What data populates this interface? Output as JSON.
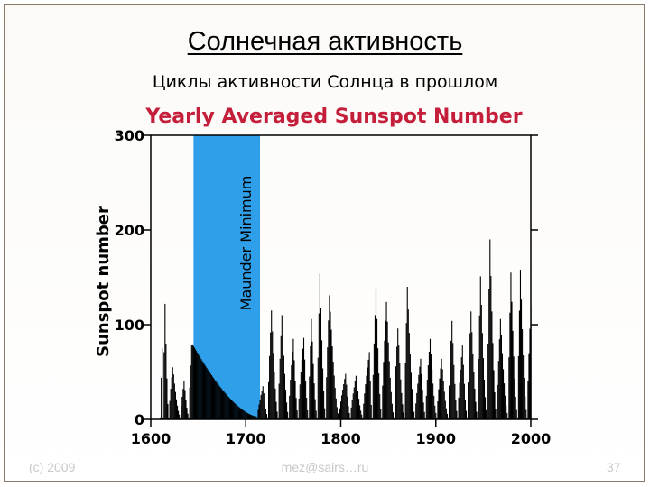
{
  "slide": {
    "title": "Солнечная активность",
    "subtitle": "Циклы активности Солнца в прошлом",
    "footer_left": "(c) 2009",
    "footer_center": "mez@sairs…ru",
    "footer_right": "37"
  },
  "chart_data": {
    "type": "bar",
    "title": "Yearly Averaged Sunspot Number",
    "xlabel": "",
    "ylabel": "Sunspot number",
    "xlim": [
      1600,
      2000
    ],
    "ylim": [
      0,
      300
    ],
    "x_ticks": [
      1600,
      1700,
      1800,
      1900,
      2000
    ],
    "y_ticks": [
      0,
      100,
      200,
      300
    ],
    "grid": false,
    "colors": {
      "bars": "#000000",
      "band": "#2e9fe8",
      "title": "#c41e3a"
    },
    "band": {
      "label": "Maunder Minimum",
      "x_start": 1645,
      "x_end": 1715
    },
    "cycles": [
      {
        "min": 1610,
        "max": 1612,
        "peak": 75
      },
      {
        "min": 1613,
        "max": 1615,
        "peak": 122
      },
      {
        "min": 1619,
        "max": 1623,
        "peak": 55
      },
      {
        "min": 1631,
        "max": 1635,
        "peak": 40
      },
      {
        "min": 1640,
        "max": 1643,
        "peak": 78
      },
      {
        "min": 1712,
        "max": 1718,
        "peak": 35
      },
      {
        "min": 1723,
        "max": 1727,
        "peak": 115
      },
      {
        "min": 1734,
        "max": 1738,
        "peak": 110
      },
      {
        "min": 1745,
        "max": 1750,
        "peak": 85
      },
      {
        "min": 1755,
        "max": 1761,
        "peak": 86
      },
      {
        "min": 1766,
        "max": 1769,
        "peak": 106
      },
      {
        "min": 1775,
        "max": 1778,
        "peak": 154
      },
      {
        "min": 1784,
        "max": 1788,
        "peak": 131
      },
      {
        "min": 1798,
        "max": 1805,
        "peak": 48
      },
      {
        "min": 1810,
        "max": 1816,
        "peak": 46
      },
      {
        "min": 1823,
        "max": 1830,
        "peak": 71
      },
      {
        "min": 1833,
        "max": 1837,
        "peak": 138
      },
      {
        "min": 1843,
        "max": 1848,
        "peak": 124
      },
      {
        "min": 1856,
        "max": 1860,
        "peak": 96
      },
      {
        "min": 1867,
        "max": 1870,
        "peak": 140
      },
      {
        "min": 1878,
        "max": 1884,
        "peak": 64
      },
      {
        "min": 1889,
        "max": 1894,
        "peak": 85
      },
      {
        "min": 1901,
        "max": 1906,
        "peak": 64
      },
      {
        "min": 1913,
        "max": 1917,
        "peak": 104
      },
      {
        "min": 1923,
        "max": 1928,
        "peak": 78
      },
      {
        "min": 1933,
        "max": 1937,
        "peak": 114
      },
      {
        "min": 1944,
        "max": 1947,
        "peak": 151
      },
      {
        "min": 1954,
        "max": 1957,
        "peak": 190
      },
      {
        "min": 1964,
        "max": 1968,
        "peak": 106
      },
      {
        "min": 1976,
        "max": 1979,
        "peak": 155
      },
      {
        "min": 1986,
        "max": 1989,
        "peak": 158
      },
      {
        "min": 1996,
        "max": 2000,
        "peak": 120
      }
    ]
  }
}
